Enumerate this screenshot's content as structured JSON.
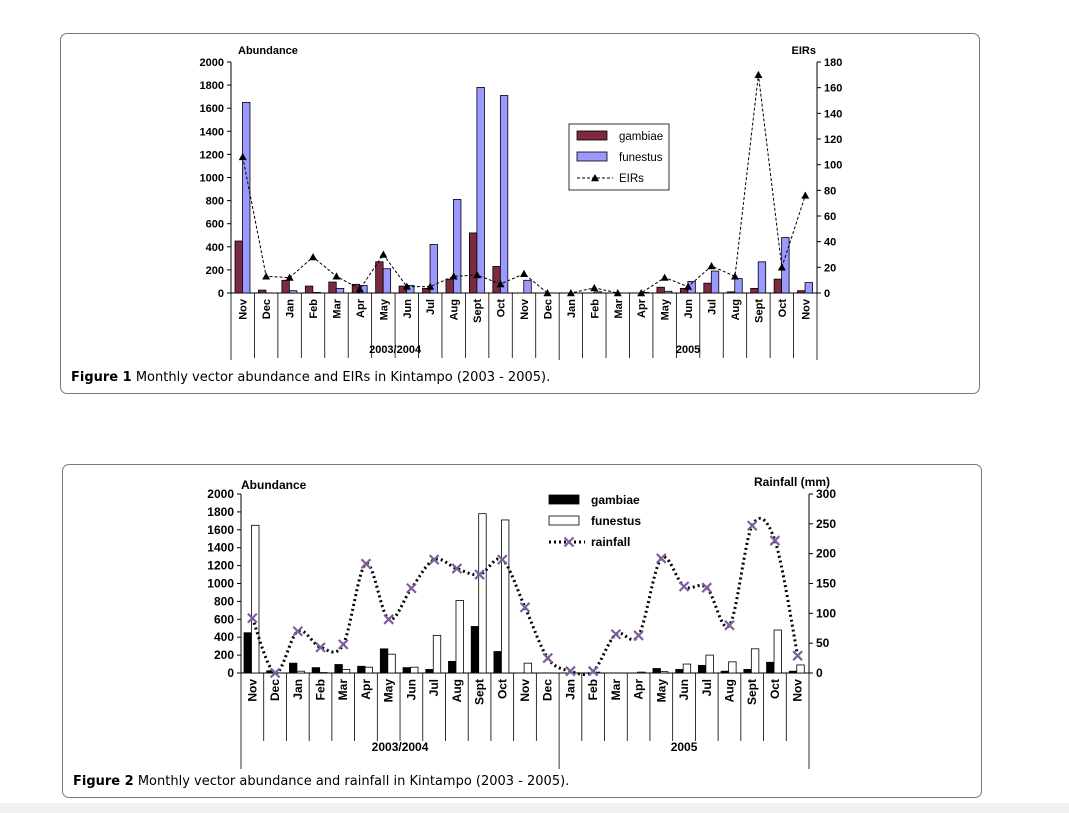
{
  "chart_data": [
    {
      "type": "bar",
      "title": "",
      "ylabel": "Abundance",
      "y2label": "EIRs",
      "ylim": [
        0,
        2000
      ],
      "y2lim": [
        0,
        180
      ],
      "yticks": [
        0,
        200,
        400,
        600,
        800,
        1000,
        1200,
        1400,
        1600,
        1800,
        2000
      ],
      "y2ticks": [
        0,
        20,
        40,
        60,
        80,
        100,
        120,
        140,
        160,
        180
      ],
      "categories": [
        "Nov",
        "Dec",
        "Jan",
        "Feb",
        "Mar",
        "Apr",
        "May",
        "Jun",
        "Jul",
        "Aug",
        "Sept",
        "Oct",
        "Nov",
        "Dec",
        "Jan",
        "Feb",
        "Mar",
        "Apr",
        "May",
        "Jun",
        "Jul",
        "Aug",
        "Sept",
        "Oct",
        "Nov"
      ],
      "groups": [
        {
          "label": "2003/2004",
          "start": 0,
          "end": 13
        },
        {
          "label": "2005",
          "start": 14,
          "end": 24
        }
      ],
      "legend_position": "center-right",
      "series": [
        {
          "name": "gambiae",
          "kind": "bar",
          "axis": "left",
          "color": "#7b2a40",
          "values": [
            450,
            25,
            110,
            60,
            95,
            75,
            270,
            60,
            40,
            120,
            520,
            230,
            0,
            0,
            0,
            0,
            0,
            0,
            50,
            40,
            85,
            10,
            40,
            120,
            20
          ]
        },
        {
          "name": "funestus",
          "kind": "bar",
          "axis": "left",
          "color": "#9999ff",
          "values": [
            1650,
            0,
            20,
            5,
            40,
            65,
            210,
            65,
            420,
            810,
            1780,
            1710,
            110,
            0,
            0,
            10,
            0,
            5,
            15,
            100,
            190,
            125,
            270,
            480,
            90
          ]
        },
        {
          "name": "EIRs",
          "kind": "line",
          "axis": "right",
          "color": "#000000",
          "values": [
            106,
            13,
            12,
            28,
            13,
            3,
            30,
            5,
            5,
            13,
            14,
            7,
            15,
            0,
            0,
            4,
            0,
            0,
            12,
            5,
            21,
            13,
            170,
            20,
            76
          ]
        }
      ]
    },
    {
      "type": "bar",
      "title": "",
      "ylabel": "Abundance",
      "y2label": "Rainfall (mm)",
      "ylim": [
        0,
        2000
      ],
      "y2lim": [
        0,
        300
      ],
      "yticks": [
        0,
        200,
        400,
        600,
        800,
        1000,
        1200,
        1400,
        1600,
        1800,
        2000
      ],
      "y2ticks": [
        0,
        50,
        100,
        150,
        200,
        250,
        300
      ],
      "categories": [
        "Nov",
        "Dec",
        "Jan",
        "Feb",
        "Mar",
        "Apr",
        "May",
        "Jun",
        "Jul",
        "Aug",
        "Sept",
        "Oct",
        "Nov",
        "Dec",
        "Jan",
        "Feb",
        "Mar",
        "Apr",
        "May",
        "Jun",
        "Jul",
        "Aug",
        "Sept",
        "Oct",
        "Nov"
      ],
      "groups": [
        {
          "label": "2003/2004",
          "start": 0,
          "end": 13
        },
        {
          "label": "2005",
          "start": 14,
          "end": 24
        }
      ],
      "legend_position": "top-center",
      "series": [
        {
          "name": "gambiae",
          "kind": "bar",
          "axis": "left",
          "color": "#000000",
          "values": [
            450,
            25,
            110,
            60,
            95,
            75,
            270,
            60,
            40,
            130,
            520,
            240,
            0,
            0,
            0,
            0,
            0,
            0,
            50,
            40,
            85,
            20,
            40,
            120,
            20
          ]
        },
        {
          "name": "funestus",
          "kind": "bar",
          "axis": "left",
          "color": "#ffffff",
          "values": [
            1650,
            0,
            20,
            5,
            40,
            65,
            210,
            65,
            420,
            810,
            1780,
            1710,
            110,
            0,
            0,
            10,
            0,
            10,
            15,
            100,
            200,
            125,
            270,
            480,
            90
          ]
        },
        {
          "name": "rainfall",
          "kind": "line",
          "axis": "right",
          "color": "#7e5f9e",
          "values": [
            92,
            0,
            70,
            43,
            48,
            183,
            90,
            142,
            190,
            175,
            165,
            190,
            110,
            25,
            3,
            3,
            65,
            63,
            192,
            145,
            143,
            80,
            247,
            222,
            29
          ]
        }
      ]
    }
  ],
  "captions": [
    {
      "label": "Figure 1",
      "text": "Monthly vector abundance and EIRs in Kintampo (2003 - 2005)."
    },
    {
      "label": "Figure 2",
      "text": "Monthly vector abundance and rainfall in Kintampo (2003 - 2005)."
    }
  ]
}
